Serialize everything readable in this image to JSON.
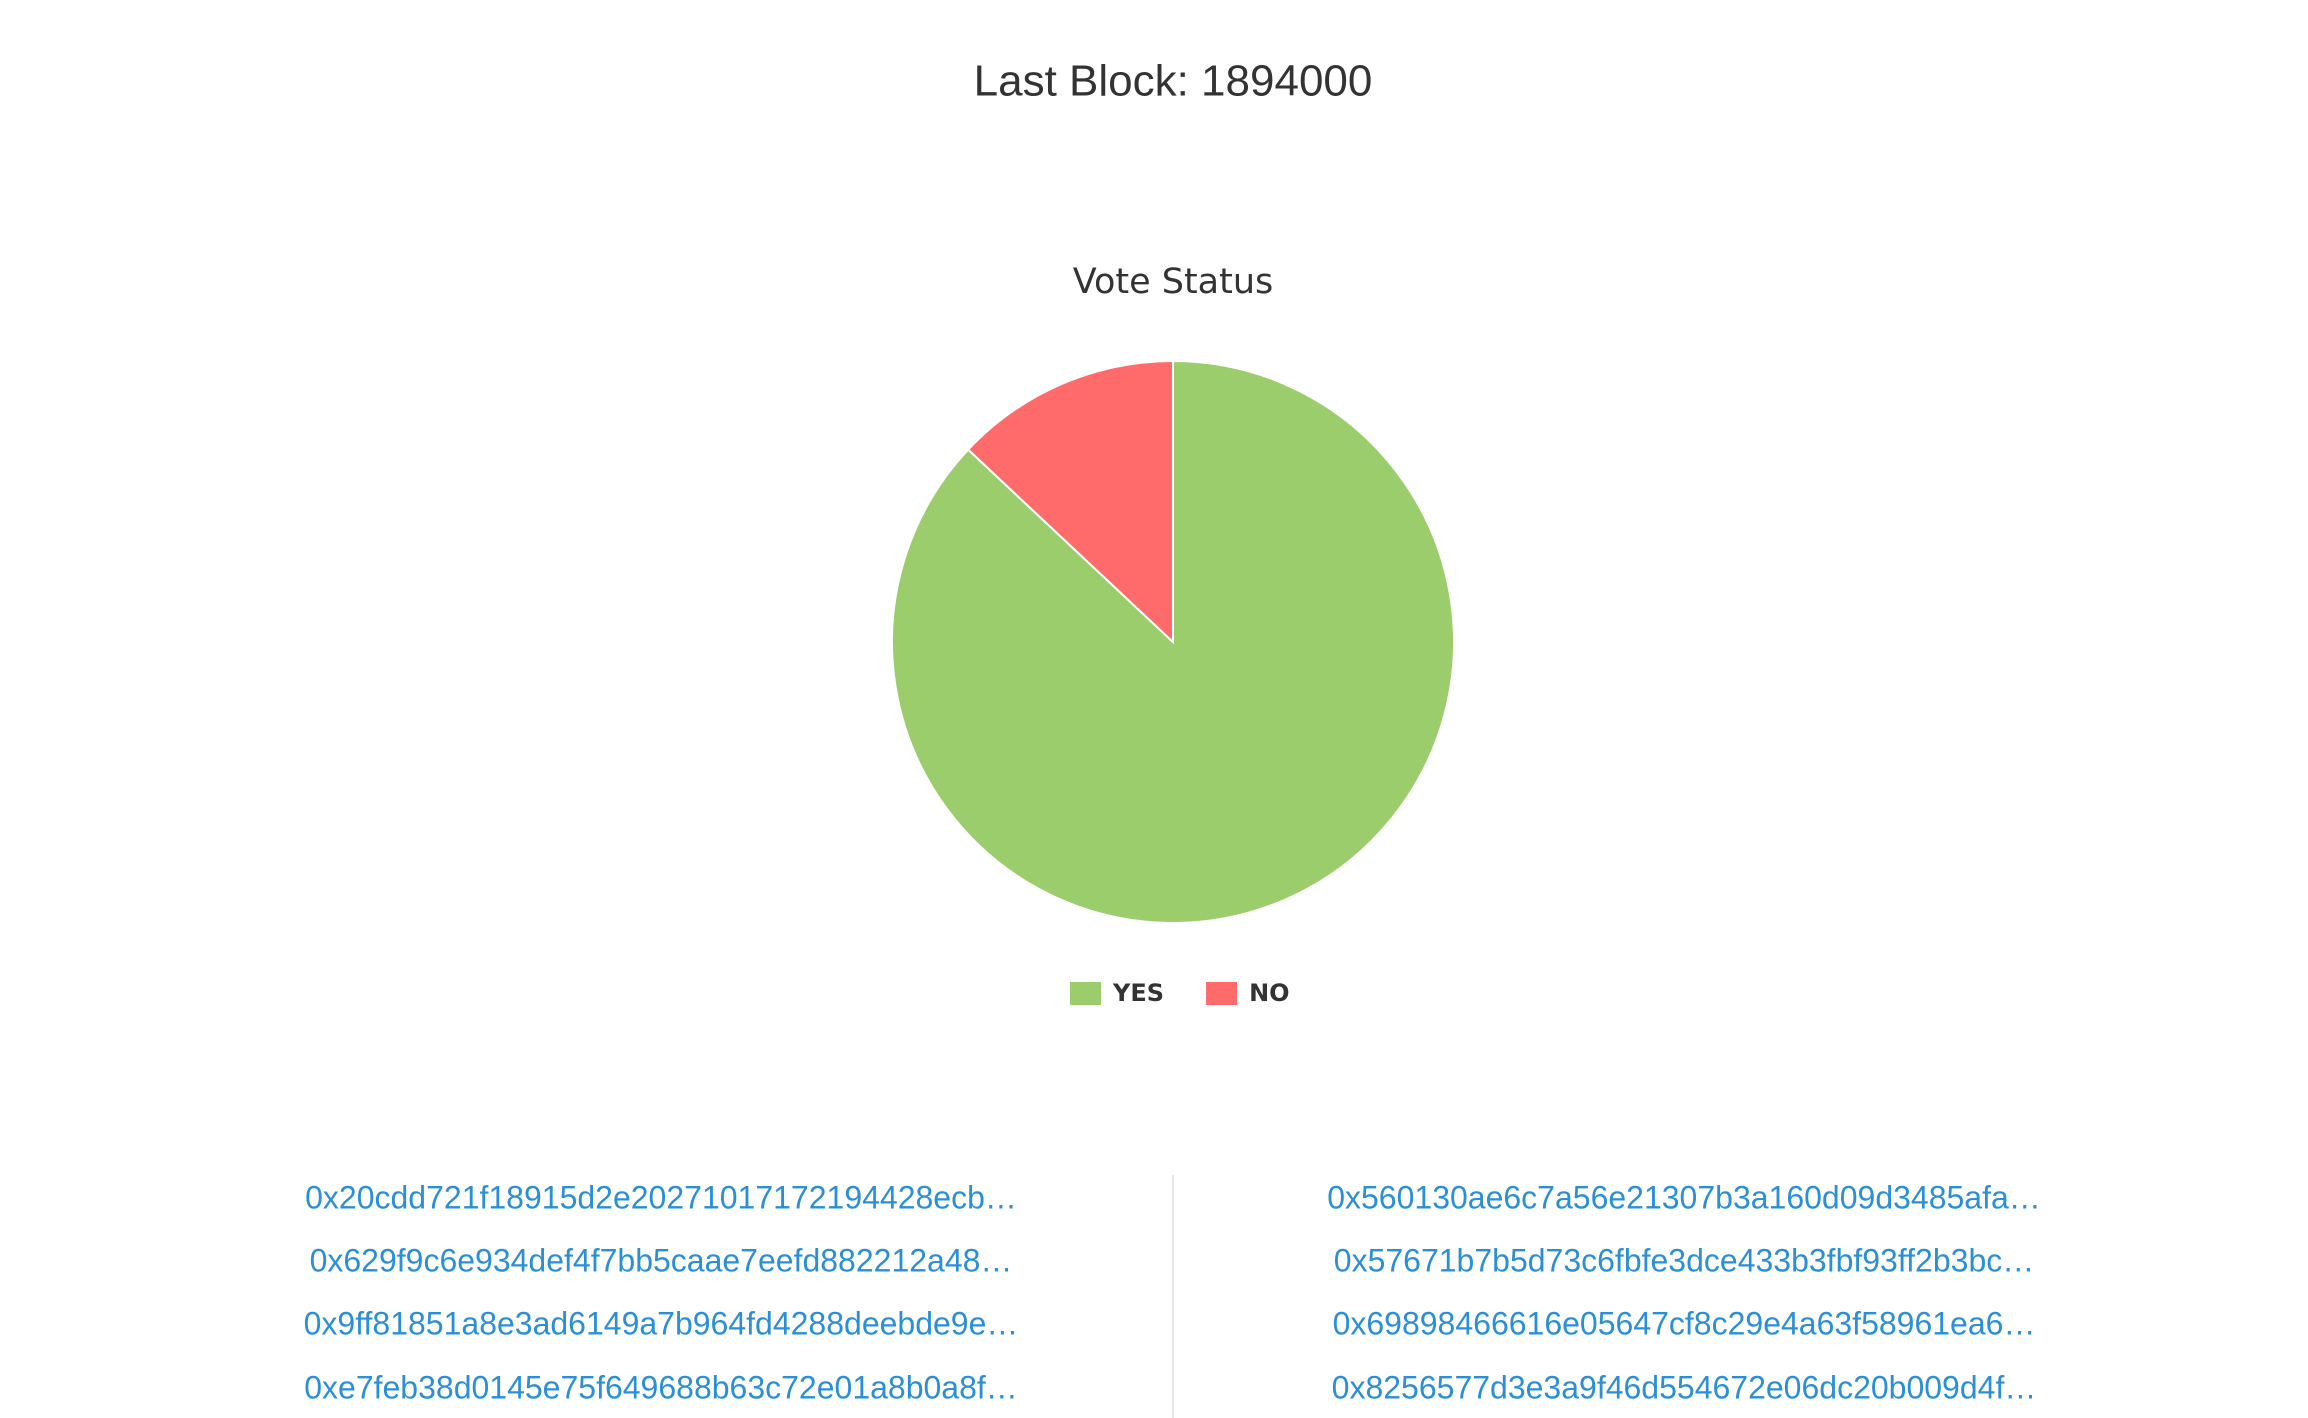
{
  "header": {
    "title": "Last Block: 1894000"
  },
  "chart_data": {
    "type": "pie",
    "title": "Vote Status",
    "categories": [
      "YES",
      "NO"
    ],
    "values": [
      87,
      13
    ],
    "colors": [
      "#9ccd6c",
      "#ff6a6b"
    ],
    "legend": "bottom"
  },
  "addresses": {
    "left": [
      "0x20cdd721f18915d2e2027101717219442­8ecb…",
      "0x629f9c6e934def4f7bb5caae7eefd882212a48…",
      "0x9ff81851a8e3ad6149a7b964fd4288deebde9e…",
      "0xe7feb38d0145e75f649688b63c72e01a8b0a8f…"
    ],
    "right": [
      "0x560130ae6c7a56e21307b3a160d09d3485afa…",
      "0x57671b7b5d73c6fbfe3dce433b3fbf93ff2b3bc…",
      "0x69898466616e05647cf8c29e4a63f58961ea6…",
      "0x8256577d3e3a9f46d554672e06dc20b009d4f…"
    ]
  }
}
